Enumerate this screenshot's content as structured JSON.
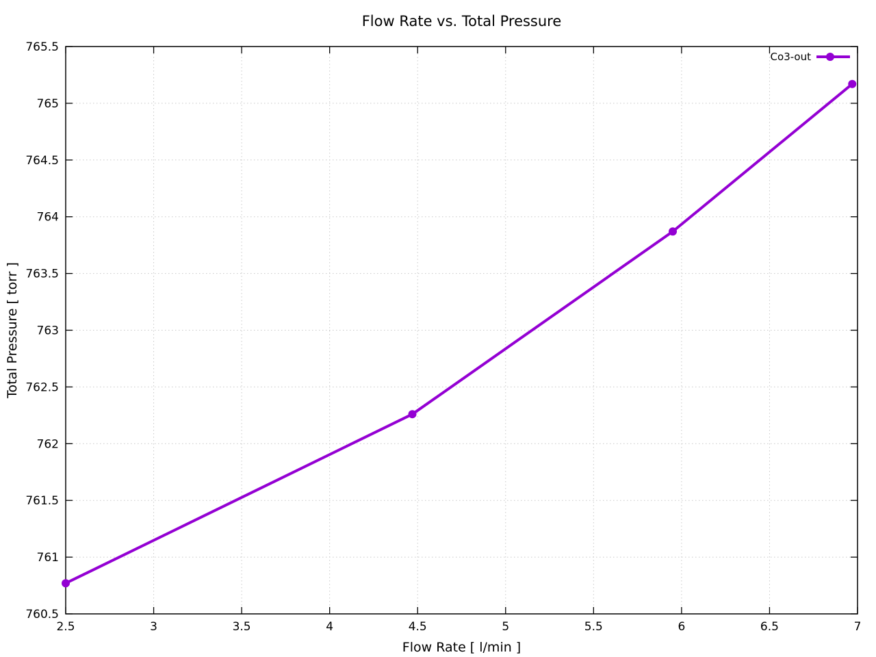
{
  "chart_data": {
    "type": "line",
    "title": "Flow Rate vs. Total Pressure",
    "xlabel": "Flow Rate [ l/min ]",
    "ylabel": "Total Pressure [ torr ]",
    "xlim": [
      2.5,
      7
    ],
    "ylim": [
      760.5,
      765.5
    ],
    "x_ticks": [
      2.5,
      3,
      3.5,
      4,
      4.5,
      5,
      5.5,
      6,
      6.5,
      7
    ],
    "y_ticks": [
      760.5,
      761,
      761.5,
      762,
      762.5,
      763,
      763.5,
      764,
      764.5,
      765,
      765.5
    ],
    "grid": true,
    "grid_style": "dotted",
    "legend_position": "top-right-inside",
    "series": [
      {
        "name": "Co3-out",
        "color": "#9400d3",
        "marker": "filled-circle",
        "line_width": 4,
        "x": [
          2.5,
          4.47,
          5.95,
          6.97
        ],
        "y": [
          760.77,
          762.26,
          763.87,
          765.17
        ]
      }
    ]
  },
  "colors": {
    "background": "#ffffff",
    "grid": "#c8c8c8",
    "axis": "#000000",
    "text": "#000000",
    "series_purple": "#9400d3"
  }
}
